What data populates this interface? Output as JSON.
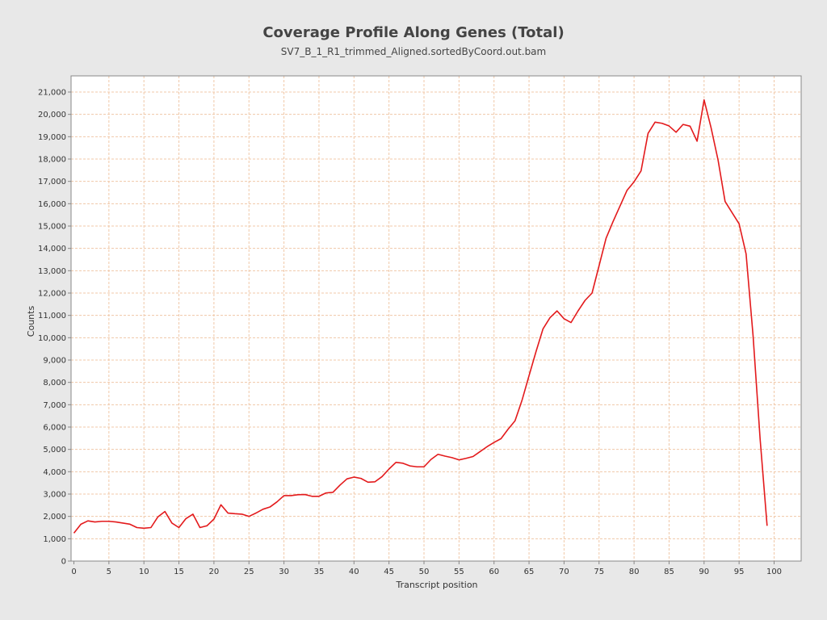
{
  "chart_data": {
    "type": "line",
    "title": "Coverage Profile Along Genes (Total)",
    "subtitle": "SV7_B_1_R1_trimmed_Aligned.sortedByCoord.out.bam",
    "xlabel": "Transcript position",
    "ylabel": "Counts",
    "xlim": [
      0,
      100
    ],
    "ylim": [
      0,
      21000
    ],
    "xticks": [
      0,
      5,
      10,
      15,
      20,
      25,
      30,
      35,
      40,
      45,
      50,
      55,
      60,
      65,
      70,
      75,
      80,
      85,
      90,
      95,
      100
    ],
    "yticks": [
      0,
      1000,
      2000,
      3000,
      4000,
      5000,
      6000,
      7000,
      8000,
      9000,
      10000,
      11000,
      12000,
      13000,
      14000,
      15000,
      16000,
      17000,
      18000,
      19000,
      20000,
      21000
    ],
    "xtick_labels": [
      "0",
      "5",
      "10",
      "15",
      "20",
      "25",
      "30",
      "35",
      "40",
      "45",
      "50",
      "55",
      "60",
      "65",
      "70",
      "75",
      "80",
      "85",
      "90",
      "95",
      "100"
    ],
    "ytick_labels": [
      "0",
      "1,000",
      "2,000",
      "3,000",
      "4,000",
      "5,000",
      "6,000",
      "7,000",
      "8,000",
      "9,000",
      "10,000",
      "11,000",
      "12,000",
      "13,000",
      "14,000",
      "15,000",
      "16,000",
      "17,000",
      "18,000",
      "19,000",
      "20,000",
      "21,000"
    ],
    "grid": true,
    "legend": "none",
    "line_color": "#e31a1c",
    "grid_color": "#f0c8a8",
    "series": [
      {
        "x": [
          0,
          1,
          2,
          3,
          4,
          5,
          6,
          7,
          8,
          9,
          10,
          11,
          12,
          13,
          14,
          15,
          16,
          17,
          18,
          19,
          20,
          21,
          22,
          23,
          24,
          25,
          26,
          27,
          28,
          29,
          30,
          31,
          32,
          33,
          34,
          35,
          36,
          37,
          38,
          39,
          40,
          41,
          42,
          43,
          44,
          45,
          46,
          47,
          48,
          49,
          50,
          51,
          52,
          53,
          54,
          55,
          56,
          57,
          58,
          59,
          60,
          61,
          62,
          63,
          64,
          65,
          66,
          67,
          68,
          69,
          70,
          71,
          72,
          73,
          74,
          75,
          76,
          77,
          78,
          79,
          80,
          81,
          82,
          83,
          84,
          85,
          86,
          87,
          88,
          89,
          90,
          91,
          92,
          93,
          94,
          95,
          96,
          97,
          98,
          99
        ],
        "values": [
          1250,
          1650,
          1800,
          1750,
          1780,
          1780,
          1750,
          1700,
          1650,
          1500,
          1470,
          1500,
          1980,
          2220,
          1700,
          1500,
          1900,
          2100,
          1500,
          1580,
          1880,
          2520,
          2150,
          2120,
          2100,
          2000,
          2150,
          2320,
          2420,
          2650,
          2930,
          2930,
          2970,
          2980,
          2900,
          2900,
          3050,
          3080,
          3400,
          3680,
          3760,
          3700,
          3530,
          3550,
          3780,
          4120,
          4420,
          4380,
          4260,
          4220,
          4220,
          4550,
          4780,
          4700,
          4630,
          4530,
          4600,
          4680,
          4900,
          5120,
          5310,
          5480,
          5900,
          6280,
          7200,
          8300,
          9380,
          10400,
          10900,
          11200,
          10850,
          10680,
          11200,
          11670,
          12000,
          13220,
          14450,
          15200,
          15900,
          16600,
          16980,
          17470,
          19150,
          19650,
          19600,
          19480,
          19200,
          19550,
          19470,
          18800,
          20650,
          19400,
          17950,
          16100,
          15600,
          15100,
          13750,
          10080,
          5480,
          1580
        ]
      }
    ]
  }
}
